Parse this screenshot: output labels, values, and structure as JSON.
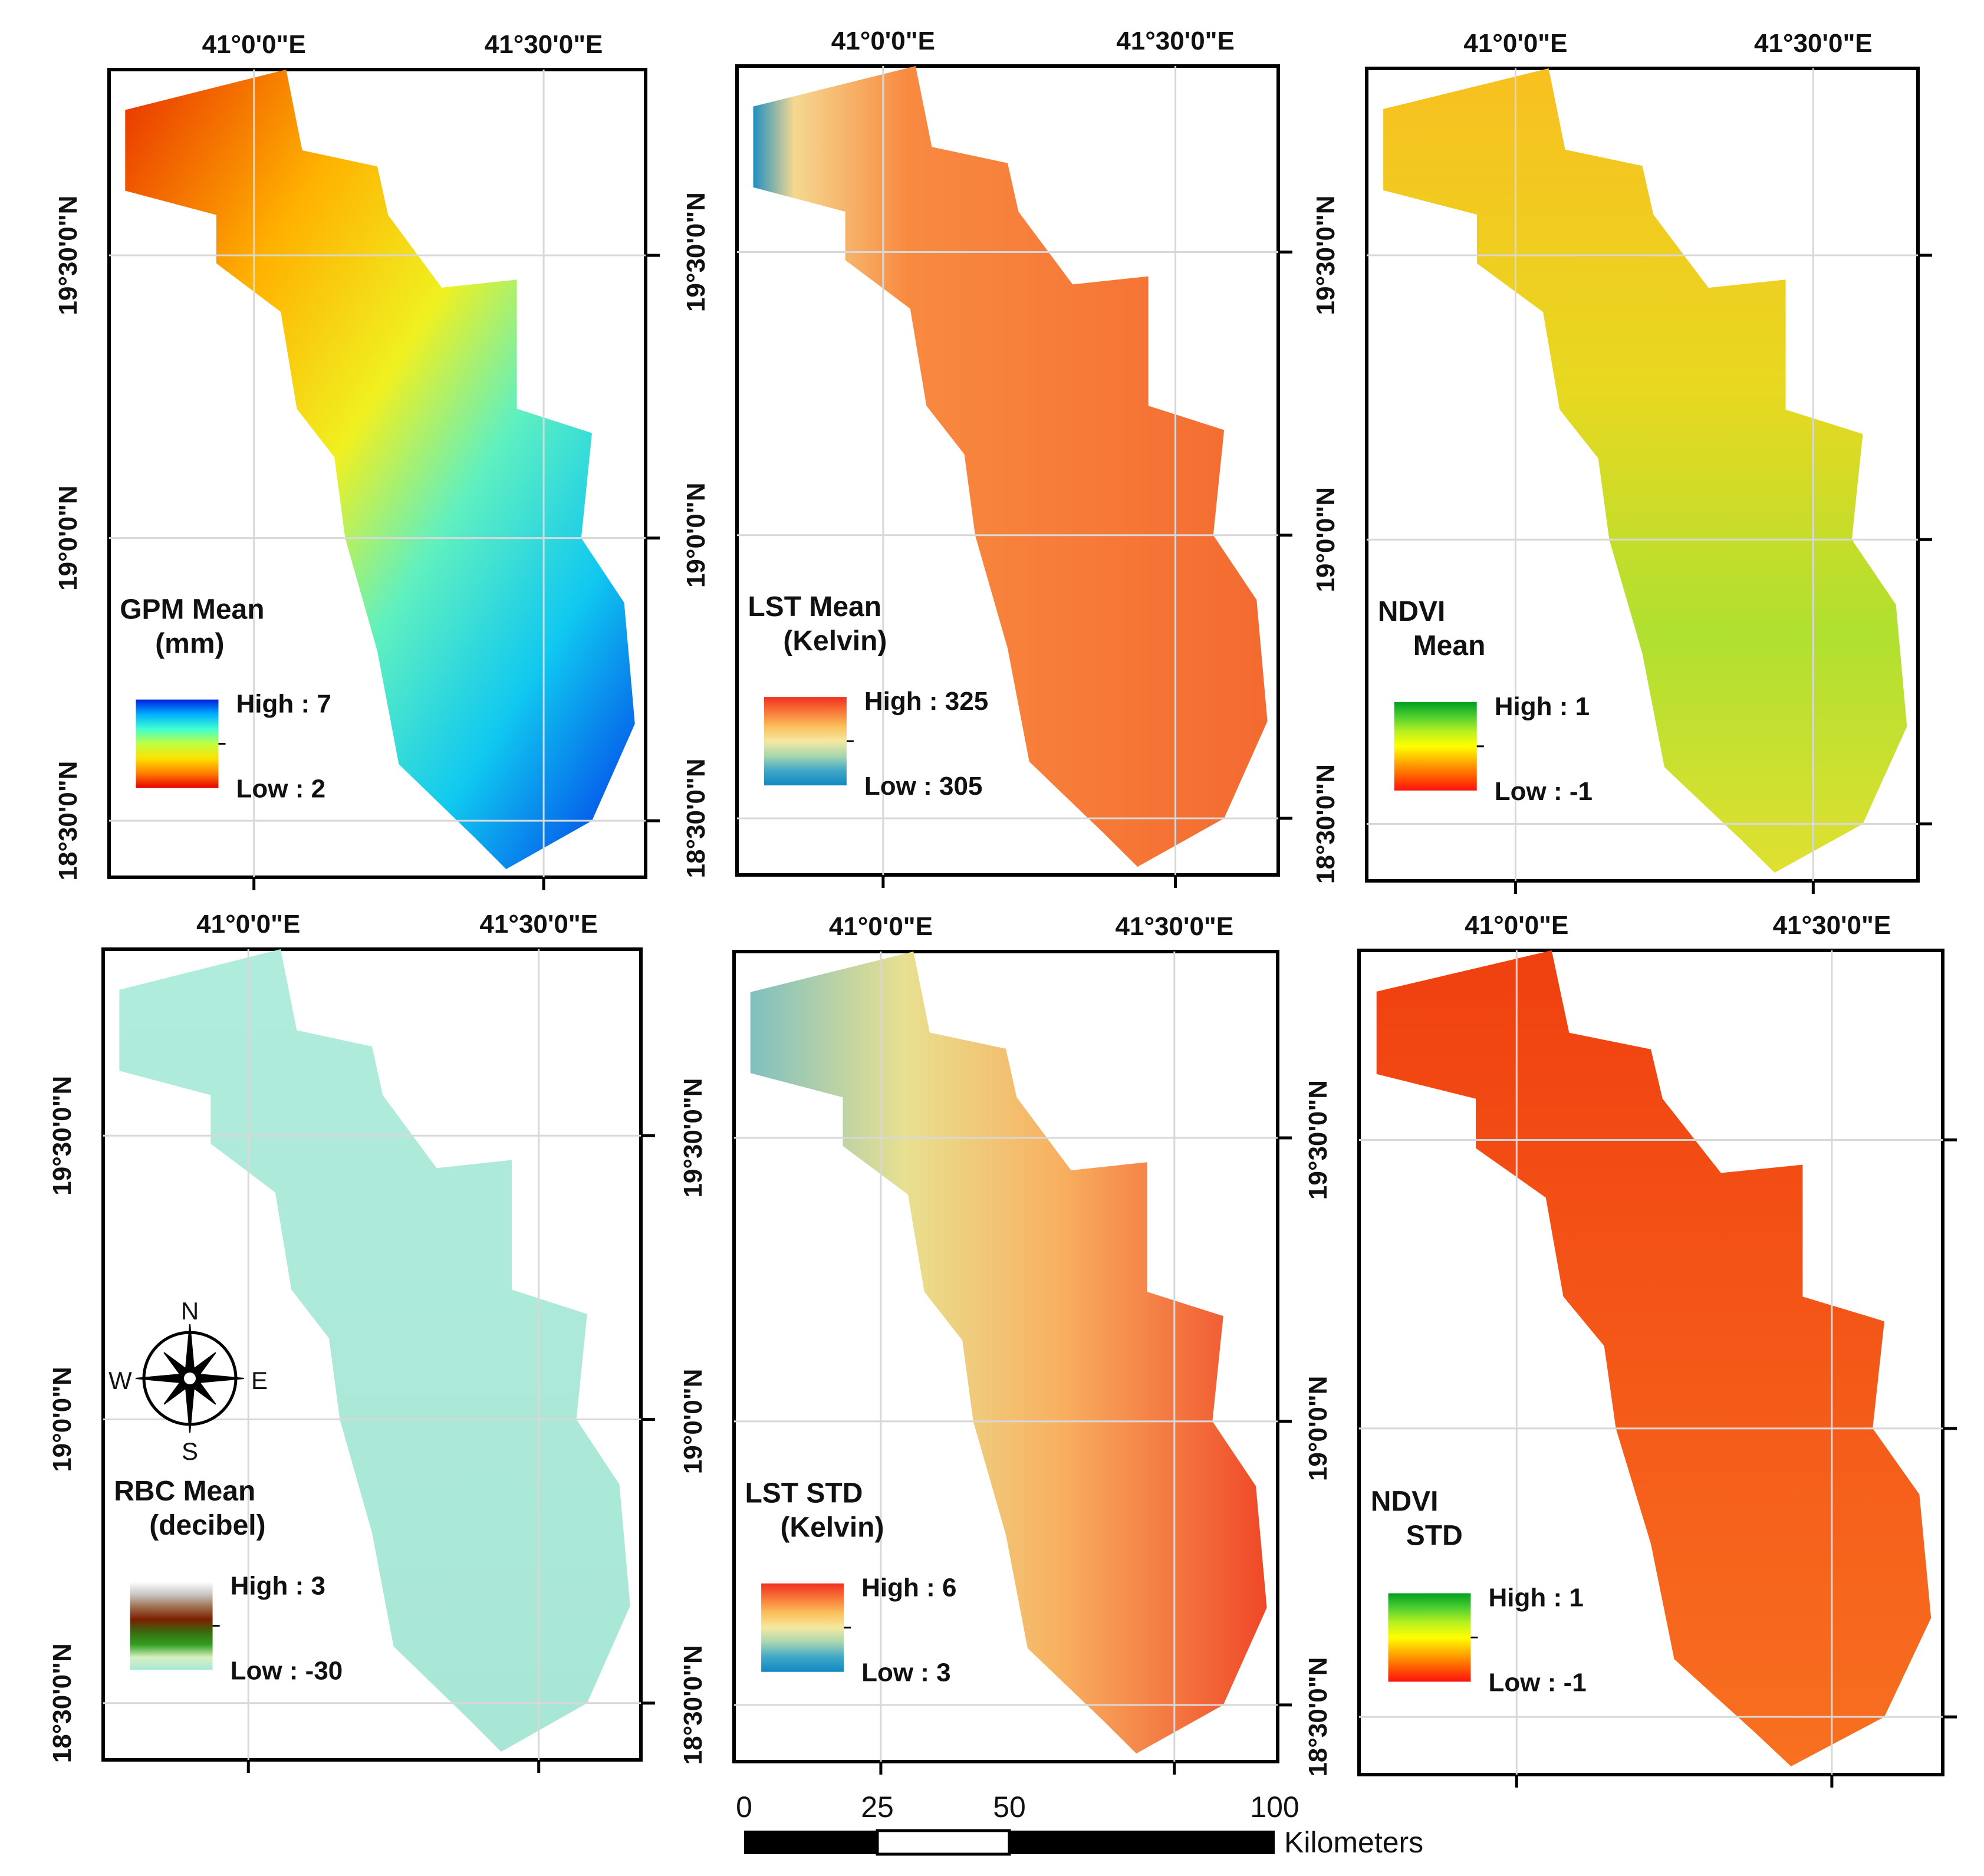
{
  "coords": {
    "lon_a": "41°0'0\"E",
    "lon_b": "41°30'0\"E",
    "lat_top": "19°30'0\"N",
    "lat_mid": "19°0'0\"N",
    "lat_bot": "18°30'0\"N"
  },
  "panels": [
    {
      "title1": "GPM Mean",
      "title2": "(mm)",
      "high": "High : 7",
      "low": "Low : 2",
      "ramp": [
        "#0020e0",
        "#00b0ff",
        "#40ffd0",
        "#c0ff40",
        "#ffe000",
        "#ff8000",
        "#e80000"
      ]
    },
    {
      "title1": "LST Mean",
      "title2": "(Kelvin)",
      "high": "High : 325",
      "low": "Low : 305",
      "ramp": [
        "#f03020",
        "#f87838",
        "#fbbf5a",
        "#f5e8a0",
        "#a8d6b0",
        "#40a8c8",
        "#1088c0"
      ]
    },
    {
      "title1": "NDVI",
      "title2": "Mean",
      "high": "High : 1",
      "low": "Low : -1",
      "ramp": [
        "#00a020",
        "#50d030",
        "#b8f020",
        "#ffff00",
        "#ffb000",
        "#ff6000",
        "#ff1010"
      ]
    },
    {
      "title1": "RBC Mean",
      "title2": "(decibel)",
      "high": "High :  3",
      "low": "Low : -30",
      "ramp": [
        "#ffffff",
        "#c8c8c8",
        "#a07050",
        "#7a2000",
        "#3a6a10",
        "#30a020",
        "#d8f0c0",
        "#a8e8d8"
      ]
    },
    {
      "title1": "LST STD",
      "title2": "(Kelvin)",
      "high": "High : 6",
      "low": "Low : 3",
      "ramp": [
        "#f03020",
        "#f87838",
        "#fbbf5a",
        "#f5e8a0",
        "#a8d6b0",
        "#40a8c8",
        "#1088c0"
      ]
    },
    {
      "title1": "NDVI",
      "title2": "STD",
      "high": "High : 1",
      "low": "Low : -1",
      "ramp": [
        "#00a020",
        "#50d030",
        "#b8f020",
        "#ffff00",
        "#ffb000",
        "#ff6000",
        "#ff1010"
      ]
    }
  ],
  "compass": {
    "n": "N",
    "s": "S",
    "e": "E",
    "w": "W"
  },
  "scalebar": {
    "ticks": [
      "0",
      "25",
      "50",
      "100"
    ],
    "unit": "Kilometers"
  }
}
